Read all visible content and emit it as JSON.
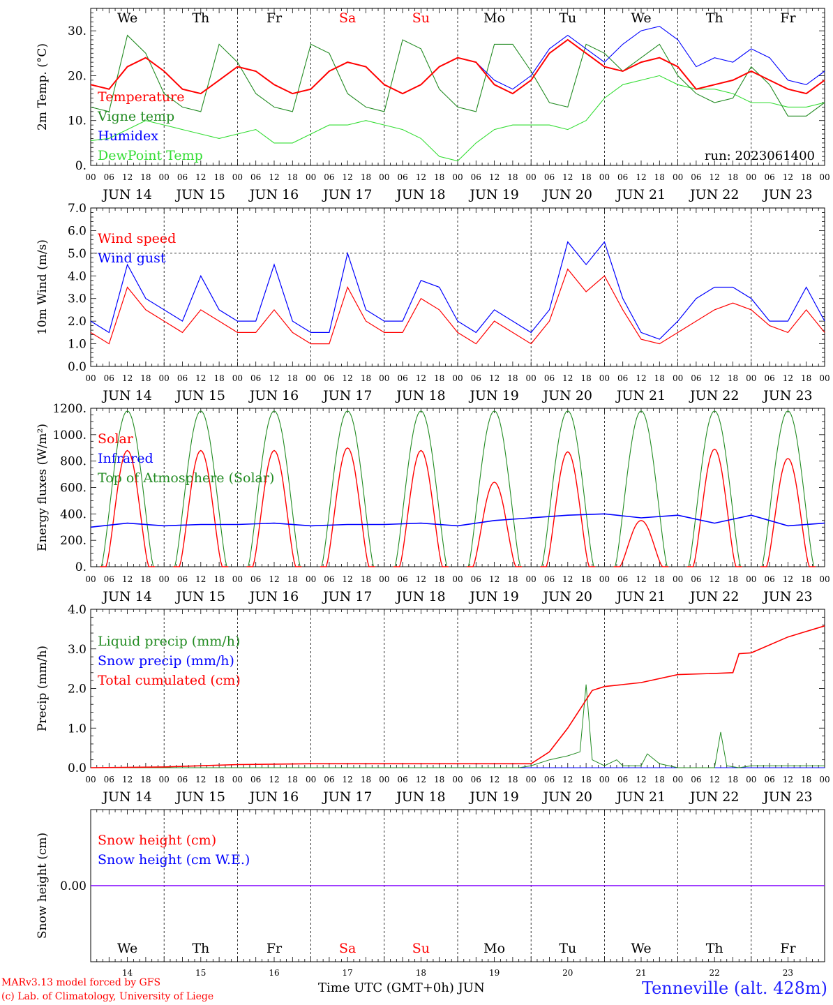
{
  "days": {
    "weekdays": [
      "We",
      "Th",
      "Fr",
      "Sa",
      "Su",
      "Mo",
      "Tu",
      "We",
      "Th",
      "Fr"
    ],
    "weekday_colors": [
      "#000000",
      "#000000",
      "#000000",
      "#ff0000",
      "#ff0000",
      "#000000",
      "#000000",
      "#000000",
      "#000000",
      "#000000"
    ],
    "dates": [
      "JUN 14",
      "JUN 15",
      "JUN 16",
      "JUN 17",
      "JUN 18",
      "JUN 19",
      "JUN 20",
      "JUN 21",
      "JUN 22",
      "JUN 23"
    ],
    "day_numbers": [
      "14",
      "15",
      "16",
      "17",
      "18",
      "19",
      "20",
      "21",
      "22",
      "23"
    ],
    "hour_ticks": [
      "00",
      "06",
      "12",
      "18"
    ],
    "final_tick": "00"
  },
  "run_label": "run: 2023061400",
  "footer": {
    "credit_line1": "MARv3.13 model forced by GFS",
    "credit_line2": "(c) Lab. of Climatology, University of Liege",
    "xaxis_title": "Time UTC (GMT+0h) JUN",
    "station": "Tenneville (alt. 428m)"
  },
  "colors": {
    "red": "#ff0000",
    "darkgreen": "#228b22",
    "blue": "#0000ff",
    "lightgreen": "#33dd33",
    "purple": "#8000ff"
  },
  "chart_data": [
    {
      "type": "line",
      "ylabel": "2m Temp. (°C)",
      "ylim": [
        0,
        35
      ],
      "yticks": [
        "0.",
        "10.",
        "20.",
        "30."
      ],
      "ytick_values": [
        0,
        10,
        20,
        30
      ],
      "legend": [
        "Temperature",
        "Vigne temp",
        "Humidex",
        "DewPoint Temp"
      ],
      "legend_colors": [
        "#ff0000",
        "#228b22",
        "#0000ff",
        "#33dd33"
      ],
      "x_unit": "hours since JUN 14 00 UTC",
      "series": [
        {
          "name": "Temperature",
          "color": "#ff0000",
          "x": [
            0,
            6,
            12,
            18,
            24,
            30,
            36,
            42,
            48,
            54,
            60,
            66,
            72,
            78,
            84,
            90,
            96,
            102,
            108,
            114,
            120,
            126,
            132,
            138,
            144,
            150,
            156,
            162,
            168,
            174,
            180,
            186,
            192,
            198,
            204,
            210,
            216,
            222,
            228,
            234,
            240
          ],
          "y": [
            18,
            17,
            22,
            24,
            21,
            17,
            16,
            19,
            22,
            21,
            18,
            16,
            17,
            21,
            23,
            22,
            18,
            16,
            18,
            22,
            24,
            23,
            18,
            16,
            19,
            25,
            28,
            25,
            22,
            21,
            23,
            24,
            22,
            17,
            18,
            19,
            21,
            19,
            17,
            16,
            19
          ]
        },
        {
          "name": "Humidex",
          "color": "#0000ff",
          "x": [
            0,
            6,
            12,
            18,
            24,
            30,
            36,
            42,
            48,
            54,
            60,
            66,
            72,
            78,
            84,
            90,
            96,
            102,
            108,
            114,
            120,
            126,
            132,
            138,
            144,
            150,
            156,
            162,
            168,
            174,
            180,
            186,
            192,
            198,
            204,
            210,
            216,
            222,
            228,
            234,
            240
          ],
          "y": [
            18,
            17,
            22,
            24,
            21,
            17,
            16,
            19,
            22,
            21,
            18,
            16,
            17,
            21,
            23,
            22,
            18,
            16,
            18,
            22,
            24,
            23,
            19,
            17,
            20,
            26,
            29,
            26,
            23,
            27,
            30,
            31,
            28,
            22,
            24,
            23,
            26,
            24,
            19,
            18,
            21
          ]
        },
        {
          "name": "Vigne temp",
          "color": "#228b22",
          "x": [
            0,
            6,
            12,
            18,
            24,
            30,
            36,
            42,
            48,
            54,
            60,
            66,
            72,
            78,
            84,
            90,
            96,
            102,
            108,
            114,
            120,
            126,
            132,
            138,
            144,
            150,
            156,
            162,
            168,
            174,
            180,
            186,
            192,
            198,
            204,
            210,
            216,
            222,
            228,
            234,
            240
          ],
          "y": [
            13,
            12,
            29,
            25,
            16,
            13,
            12,
            27,
            23,
            16,
            13,
            12,
            27,
            25,
            16,
            13,
            12,
            28,
            26,
            17,
            13,
            12,
            27,
            27,
            21,
            14,
            13,
            27,
            25,
            21,
            24,
            27,
            20,
            16,
            14,
            15,
            22,
            18,
            11,
            11,
            14
          ]
        },
        {
          "name": "DewPoint Temp",
          "color": "#33dd33",
          "x": [
            0,
            6,
            12,
            18,
            24,
            30,
            36,
            42,
            48,
            54,
            60,
            66,
            72,
            78,
            84,
            90,
            96,
            102,
            108,
            114,
            120,
            126,
            132,
            138,
            144,
            150,
            156,
            162,
            168,
            174,
            180,
            186,
            192,
            198,
            204,
            210,
            216,
            222,
            228,
            234,
            240
          ],
          "y": [
            5.5,
            6,
            8,
            10,
            9,
            8,
            7,
            6,
            7,
            8,
            5,
            5,
            7,
            9,
            9,
            10,
            9,
            8,
            6,
            2,
            1,
            5,
            8,
            9,
            9,
            9,
            8,
            10,
            15,
            18,
            19,
            20,
            18,
            17,
            17,
            16,
            14,
            14,
            13,
            13,
            14
          ]
        }
      ]
    },
    {
      "type": "line",
      "ylabel": "10m Wind (m/s)",
      "ylim": [
        0,
        7
      ],
      "yticks": [
        "0.0",
        "1.0",
        "2.0",
        "3.0",
        "4.0",
        "5.0",
        "6.0",
        "7.0"
      ],
      "ytick_values": [
        0,
        1,
        2,
        3,
        4,
        5,
        6,
        7
      ],
      "reference_line": 5,
      "legend": [
        "Wind speed",
        "Wind gust"
      ],
      "legend_colors": [
        "#ff0000",
        "#0000ff"
      ],
      "x_unit": "hours since JUN 14 00 UTC",
      "series": [
        {
          "name": "Wind speed",
          "color": "#ff0000",
          "x": [
            0,
            6,
            12,
            18,
            24,
            30,
            36,
            42,
            48,
            54,
            60,
            66,
            72,
            78,
            84,
            90,
            96,
            102,
            108,
            114,
            120,
            126,
            132,
            138,
            144,
            150,
            156,
            162,
            168,
            174,
            180,
            186,
            192,
            198,
            204,
            210,
            216,
            222,
            228,
            234,
            240
          ],
          "y": [
            1.5,
            1.0,
            3.5,
            2.5,
            2.0,
            1.5,
            2.5,
            2.0,
            1.5,
            1.5,
            2.5,
            1.5,
            1.0,
            1.0,
            3.5,
            2.0,
            1.5,
            1.5,
            3.0,
            2.5,
            1.5,
            1.0,
            2.0,
            1.5,
            1.0,
            2.0,
            4.3,
            3.3,
            4.0,
            2.5,
            1.2,
            1.0,
            1.5,
            2.0,
            2.5,
            2.8,
            2.5,
            1.8,
            1.5,
            2.5,
            1.5
          ]
        },
        {
          "name": "Wind gust",
          "color": "#0000ff",
          "x": [
            0,
            6,
            12,
            18,
            24,
            30,
            36,
            42,
            48,
            54,
            60,
            66,
            72,
            78,
            84,
            90,
            96,
            102,
            108,
            114,
            120,
            126,
            132,
            138,
            144,
            150,
            156,
            162,
            168,
            174,
            180,
            186,
            192,
            198,
            204,
            210,
            216,
            222,
            228,
            234,
            240
          ],
          "y": [
            2.0,
            1.5,
            4.5,
            3.0,
            2.5,
            2.0,
            4.0,
            2.5,
            2.0,
            2.0,
            4.5,
            2.0,
            1.5,
            1.5,
            5.0,
            2.5,
            2.0,
            2.0,
            3.8,
            3.5,
            2.0,
            1.5,
            2.5,
            2.0,
            1.5,
            2.5,
            5.5,
            4.5,
            5.5,
            3.0,
            1.5,
            1.2,
            2.0,
            3.0,
            3.5,
            3.5,
            3.0,
            2.0,
            2.0,
            3.5,
            2.0
          ]
        }
      ]
    },
    {
      "type": "line",
      "ylabel": "Energy fluxes (W/m²)",
      "ylim": [
        0,
        1200
      ],
      "yticks": [
        "0.",
        "200.",
        "400.",
        "600.",
        "800.",
        "1000.",
        "1200."
      ],
      "ytick_values": [
        0,
        200,
        400,
        600,
        800,
        1000,
        1200
      ],
      "legend": [
        "Solar",
        "Infrared",
        "Top of Atmosphere (Solar)"
      ],
      "legend_colors": [
        "#ff0000",
        "#0000ff",
        "#228b22"
      ],
      "x_unit": "hours since JUN 14 00 UTC",
      "toa_peak": 1180,
      "solar_peaks": [
        880,
        880,
        880,
        900,
        880,
        640,
        870,
        350,
        890,
        820
      ],
      "series": [
        {
          "name": "Infrared",
          "color": "#0000ff",
          "x": [
            0,
            12,
            24,
            36,
            48,
            60,
            72,
            84,
            96,
            108,
            120,
            132,
            144,
            156,
            168,
            180,
            192,
            204,
            216,
            228,
            240
          ],
          "y": [
            300,
            330,
            310,
            320,
            320,
            330,
            310,
            320,
            320,
            330,
            310,
            350,
            370,
            390,
            400,
            370,
            390,
            330,
            390,
            310,
            330
          ]
        }
      ]
    },
    {
      "type": "line",
      "ylabel": "Precip (mm/h)",
      "ylim": [
        0,
        4
      ],
      "yticks": [
        "0.0",
        "1.0",
        "2.0",
        "3.0",
        "4.0"
      ],
      "ytick_values": [
        0,
        1,
        2,
        3,
        4
      ],
      "legend": [
        "Liquid precip (mm/h)",
        "Snow precip (mm/h)",
        "Total cumulated (cm)"
      ],
      "legend_colors": [
        "#228b22",
        "#0000ff",
        "#ff0000"
      ],
      "x_unit": "hours since JUN 14 00 UTC",
      "series": [
        {
          "name": "Total cumulated (cm)",
          "color": "#ff0000",
          "x": [
            0,
            24,
            36,
            48,
            72,
            96,
            120,
            132,
            144,
            150,
            156,
            164,
            168,
            180,
            192,
            204,
            210,
            212,
            216,
            228,
            240
          ],
          "y": [
            0,
            0.02,
            0.05,
            0.08,
            0.1,
            0.1,
            0.1,
            0.1,
            0.1,
            0.4,
            1.0,
            1.95,
            2.05,
            2.15,
            2.35,
            2.38,
            2.4,
            2.88,
            2.9,
            3.3,
            3.58
          ]
        },
        {
          "name": "Liquid precip (mm/h)",
          "color": "#228b22",
          "x": [
            0,
            140,
            144,
            150,
            156,
            160,
            162,
            164,
            168,
            172,
            174,
            180,
            182,
            186,
            192,
            200,
            204,
            206,
            208,
            212,
            216,
            228,
            240
          ],
          "y": [
            0,
            0,
            0.05,
            0.2,
            0.3,
            0.4,
            2.1,
            0.2,
            0.05,
            0.2,
            0.05,
            0.05,
            0.35,
            0.1,
            0,
            0,
            0,
            0.9,
            0.05,
            0,
            0.05,
            0.05,
            0.05
          ]
        },
        {
          "name": "Snow precip (mm/h)",
          "color": "#0000ff",
          "x": [
            0,
            240
          ],
          "y": [
            0,
            0
          ]
        }
      ]
    },
    {
      "type": "line",
      "ylabel": "Snow height (cm)",
      "ylim": [
        -1,
        1
      ],
      "yticks": [
        "0.00"
      ],
      "ytick_values": [
        0
      ],
      "legend": [
        "Snow height (cm)",
        "Snow height (cm W.E.)"
      ],
      "legend_colors": [
        "#ff0000",
        "#0000ff"
      ],
      "x_unit": "hours since JUN 14 00 UTC",
      "series": [
        {
          "name": "Snow height (cm)",
          "color": "#ff0000",
          "x": [
            0,
            240
          ],
          "y": [
            0,
            0
          ]
        },
        {
          "name": "Snow height (cm W.E.)",
          "color": "#0000ff",
          "x": [
            0,
            240
          ],
          "y": [
            0,
            0
          ]
        }
      ]
    }
  ]
}
